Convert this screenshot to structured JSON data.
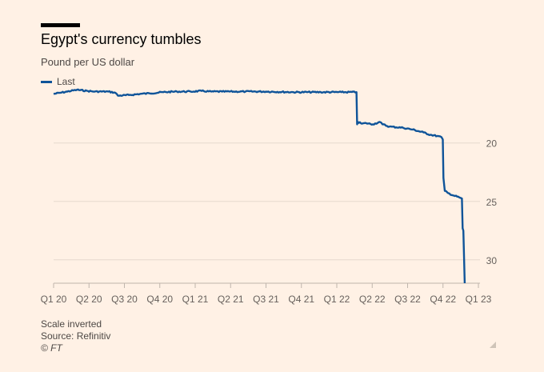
{
  "chart_data": {
    "type": "line",
    "title": "Egypt's currency tumbles",
    "subtitle": "Pound per US dollar",
    "legend": [
      "Last"
    ],
    "color": "#0f5499",
    "y_inverted": true,
    "ylim": [
      15.5,
      32
    ],
    "yticks": [
      20,
      25,
      30
    ],
    "xticks": [
      "Q1 20",
      "Q2 20",
      "Q3 20",
      "Q4 20",
      "Q1 21",
      "Q2 21",
      "Q3 21",
      "Q4 21",
      "Q1 22",
      "Q2 22",
      "Q3 22",
      "Q4 22",
      "Q1 23"
    ],
    "xlim": [
      2020.0,
      2023.1
    ],
    "series": [
      {
        "name": "Last",
        "points": [
          [
            2020.0,
            15.8
          ],
          [
            2020.05,
            15.7
          ],
          [
            2020.1,
            15.6
          ],
          [
            2020.17,
            15.45
          ],
          [
            2020.25,
            15.55
          ],
          [
            2020.3,
            15.6
          ],
          [
            2020.4,
            15.6
          ],
          [
            2020.45,
            15.7
          ],
          [
            2020.47,
            15.95
          ],
          [
            2020.55,
            15.9
          ],
          [
            2020.63,
            15.8
          ],
          [
            2020.7,
            15.75
          ],
          [
            2020.8,
            15.65
          ],
          [
            2020.9,
            15.6
          ],
          [
            2021.0,
            15.6
          ],
          [
            2021.08,
            15.55
          ],
          [
            2021.15,
            15.6
          ],
          [
            2021.23,
            15.6
          ],
          [
            2021.4,
            15.6
          ],
          [
            2021.55,
            15.6
          ],
          [
            2021.75,
            15.65
          ],
          [
            2021.95,
            15.65
          ],
          [
            2022.1,
            15.65
          ],
          [
            2022.21,
            15.65
          ],
          [
            2022.215,
            18.4
          ],
          [
            2022.22,
            18.2
          ],
          [
            2022.25,
            18.35
          ],
          [
            2022.28,
            18.3
          ],
          [
            2022.33,
            18.4
          ],
          [
            2022.38,
            18.2
          ],
          [
            2022.4,
            18.4
          ],
          [
            2022.45,
            18.6
          ],
          [
            2022.55,
            18.7
          ],
          [
            2022.62,
            18.85
          ],
          [
            2022.7,
            19.1
          ],
          [
            2022.75,
            19.3
          ],
          [
            2022.8,
            19.4
          ],
          [
            2022.83,
            19.5
          ],
          [
            2022.84,
            19.7
          ],
          [
            2022.845,
            23.0
          ],
          [
            2022.855,
            24.1
          ],
          [
            2022.88,
            24.3
          ],
          [
            2022.92,
            24.5
          ],
          [
            2022.97,
            24.7
          ],
          [
            2022.98,
            24.75
          ],
          [
            2022.985,
            27.3
          ],
          [
            2022.99,
            27.5
          ],
          [
            2023.0,
            32.0
          ]
        ]
      }
    ]
  },
  "footer": {
    "note": "Scale inverted",
    "source": "Source: Refinitiv",
    "credit": "© FT"
  }
}
